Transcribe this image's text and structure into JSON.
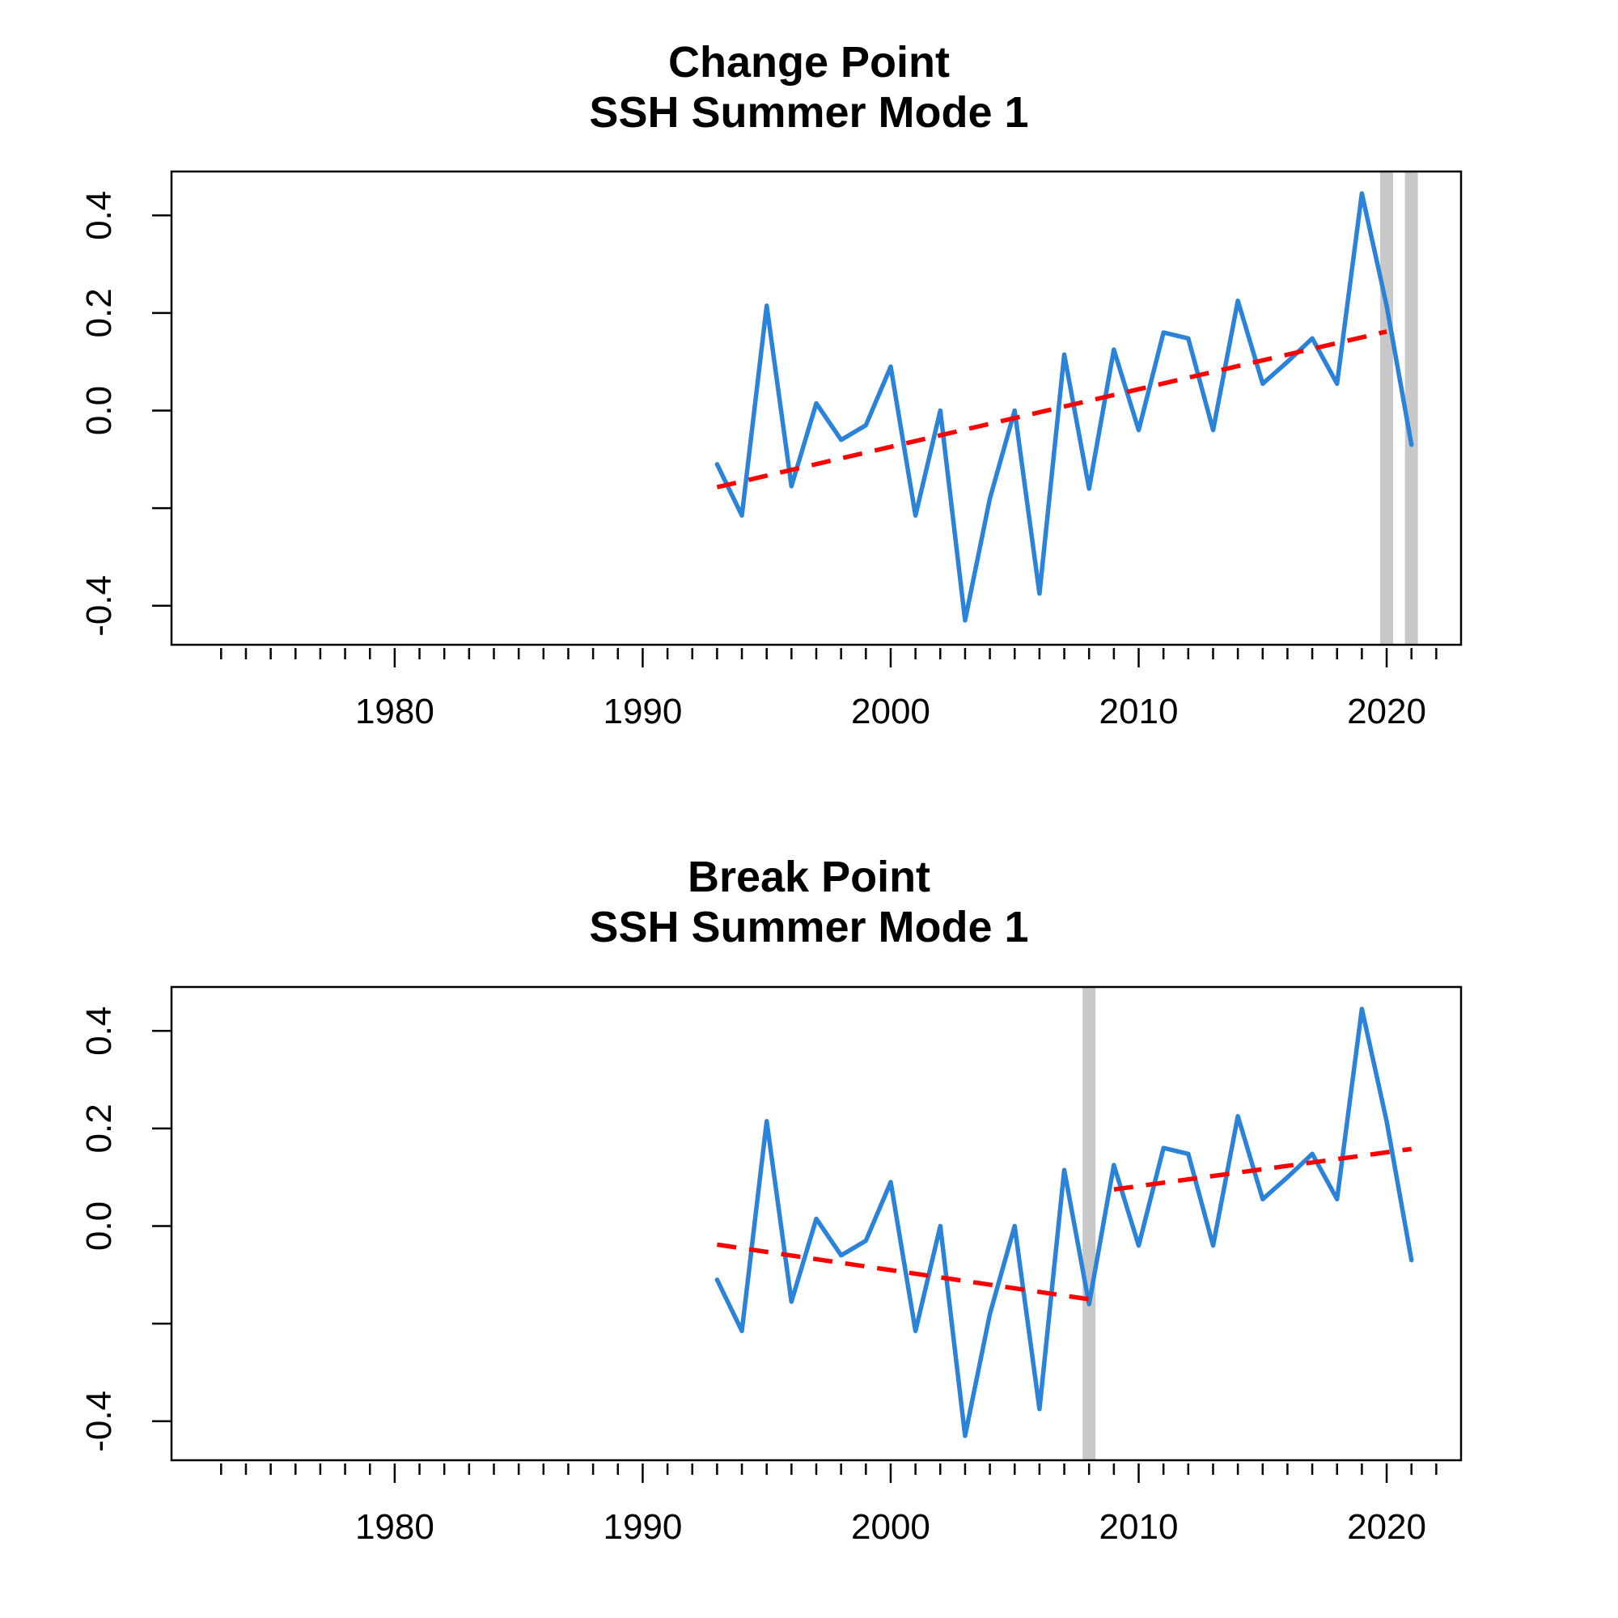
{
  "colors": {
    "series": "#2a83d8",
    "trend": "#ff0000",
    "marker": "#c8c8c8"
  },
  "chart_data": [
    {
      "type": "line",
      "title": "Change Point",
      "subtitle": "SSH Summer Mode 1",
      "xlabel": "",
      "ylabel": "",
      "xlim": [
        1971,
        2023
      ],
      "ylim": [
        -0.48,
        0.49
      ],
      "x_ticks": [
        1980,
        1990,
        2000,
        2010,
        2020
      ],
      "y_ticks": [
        0.4,
        0.2,
        0.0,
        -0.2,
        -0.4
      ],
      "y_tick_labels": [
        "0.4",
        "0.2",
        "0.0",
        "",
        "-0.4"
      ],
      "grid": false,
      "series": [
        {
          "x": [
            1993,
            1994,
            1995,
            1996,
            1997,
            1998,
            1999,
            2000,
            2001,
            2002,
            2003,
            2004,
            2005,
            2006,
            2007,
            2008,
            2009,
            2010,
            2011,
            2012,
            2013,
            2014,
            2015,
            2016,
            2017,
            2018,
            2019,
            2020,
            2021
          ],
          "values": [
            -0.11,
            -0.215,
            0.215,
            -0.155,
            0.015,
            -0.06,
            -0.03,
            0.09,
            -0.215,
            0.0,
            -0.43,
            -0.18,
            0.0,
            -0.375,
            0.115,
            -0.16,
            0.125,
            -0.04,
            0.16,
            0.148,
            -0.04,
            0.225,
            0.055,
            0.1,
            0.148,
            0.055,
            0.445,
            0.215,
            -0.07
          ]
        }
      ],
      "trend_segments": [
        {
          "x": [
            1993,
            2020
          ],
          "y": [
            -0.157,
            0.162
          ]
        }
      ],
      "markers": [
        2020,
        2021
      ]
    },
    {
      "type": "line",
      "title": "Break Point",
      "subtitle": "SSH Summer Mode 1",
      "xlabel": "",
      "ylabel": "",
      "xlim": [
        1971,
        2023
      ],
      "ylim": [
        -0.48,
        0.49
      ],
      "x_ticks": [
        1980,
        1990,
        2000,
        2010,
        2020
      ],
      "y_ticks": [
        0.4,
        0.2,
        0.0,
        -0.2,
        -0.4
      ],
      "y_tick_labels": [
        "0.4",
        "0.2",
        "0.0",
        "",
        "-0.4"
      ],
      "grid": false,
      "series": [
        {
          "x": [
            1993,
            1994,
            1995,
            1996,
            1997,
            1998,
            1999,
            2000,
            2001,
            2002,
            2003,
            2004,
            2005,
            2006,
            2007,
            2008,
            2009,
            2010,
            2011,
            2012,
            2013,
            2014,
            2015,
            2016,
            2017,
            2018,
            2019,
            2020,
            2021
          ],
          "values": [
            -0.11,
            -0.215,
            0.215,
            -0.155,
            0.015,
            -0.06,
            -0.03,
            0.09,
            -0.215,
            0.0,
            -0.43,
            -0.18,
            0.0,
            -0.375,
            0.115,
            -0.16,
            0.125,
            -0.04,
            0.16,
            0.148,
            -0.04,
            0.225,
            0.055,
            0.1,
            0.148,
            0.055,
            0.445,
            0.215,
            -0.07
          ]
        }
      ],
      "trend_segments": [
        {
          "x": [
            1993,
            2008
          ],
          "y": [
            -0.038,
            -0.15
          ]
        },
        {
          "x": [
            2009,
            2021
          ],
          "y": [
            0.075,
            0.158
          ]
        }
      ],
      "markers": [
        2008
      ]
    }
  ]
}
